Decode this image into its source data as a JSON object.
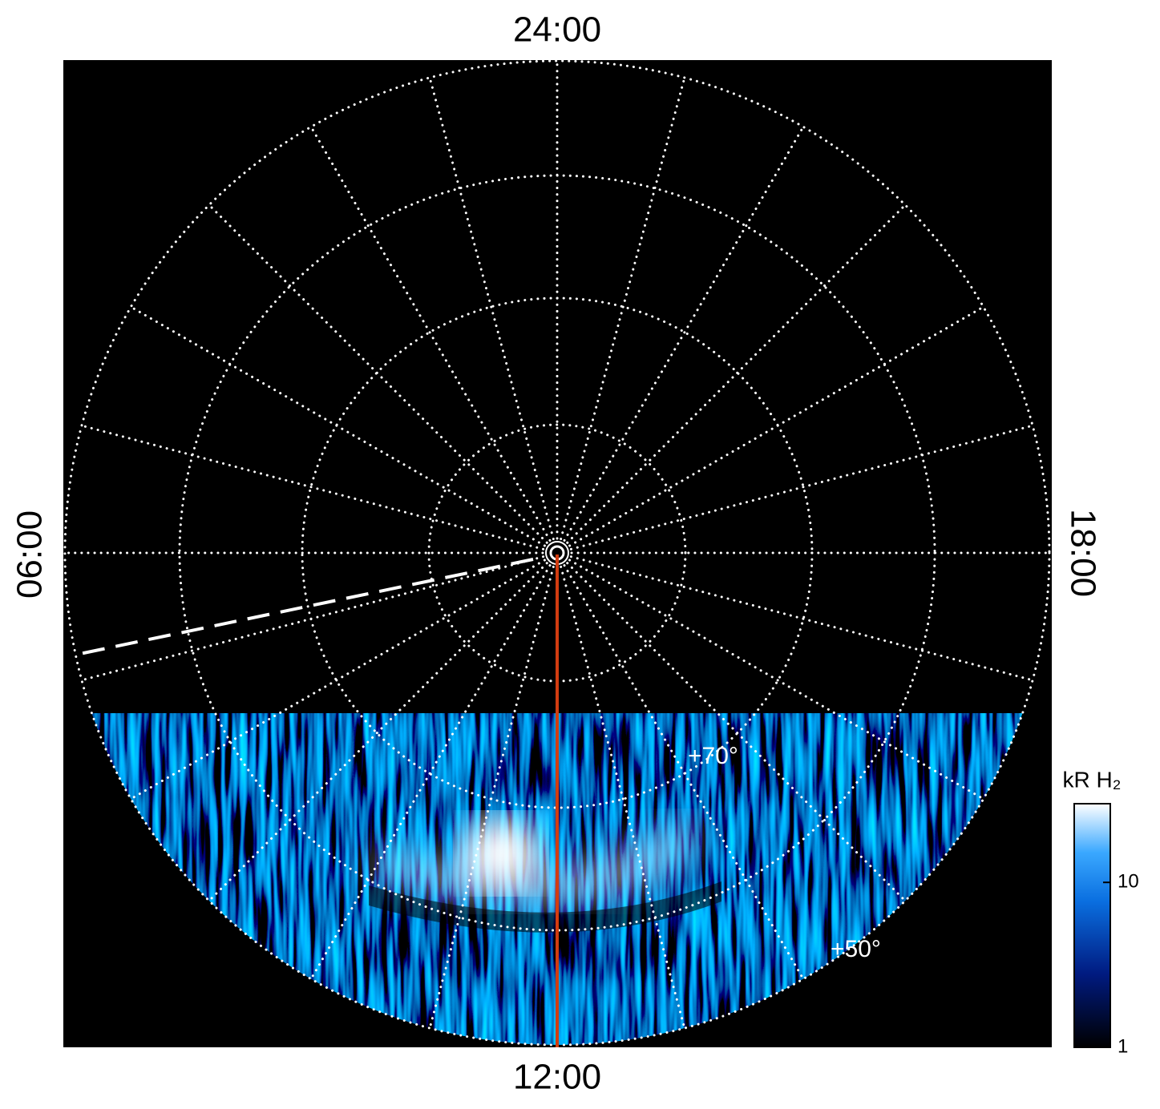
{
  "chart_data": {
    "type": "polar-image",
    "local_time_labels": {
      "top": "24:00",
      "bottom": "12:00",
      "left": "06:00",
      "right": "18:00"
    },
    "latitude_labels": [
      "+70°",
      "+50°"
    ],
    "colorbar": {
      "label": "kR H₂",
      "scale": "log",
      "lim": [
        1,
        30
      ],
      "ticks": [
        1,
        10
      ]
    }
  }
}
